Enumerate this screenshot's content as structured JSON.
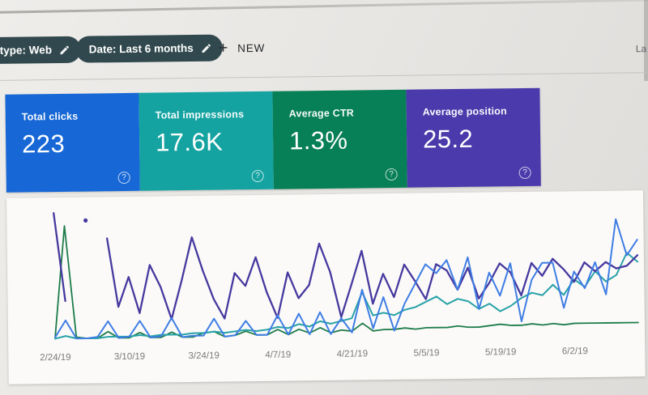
{
  "window": {
    "top_right_partial": "La"
  },
  "toolbar": {
    "chips": [
      {
        "label": "type: Web"
      },
      {
        "label": "Date: Last 6 months"
      }
    ],
    "new_button": {
      "plus": "+",
      "label": "NEW"
    }
  },
  "ui": {
    "help_glyph": "?"
  },
  "cards": [
    {
      "label": "Total clicks",
      "value": "223",
      "color": "#1768d6"
    },
    {
      "label": "Total impressions",
      "value": "17.6K",
      "color": "#14a3a1"
    },
    {
      "label": "Average CTR",
      "value": "1.3%",
      "color": "#077f57"
    },
    {
      "label": "Average position",
      "value": "25.2",
      "color": "#4b3aab"
    }
  ],
  "chart_data": {
    "type": "line",
    "title": "",
    "xlabel": "",
    "ylabel": "",
    "x_range": [
      "2/24/19",
      "6/8/19"
    ],
    "point_spacing_days": 2,
    "x_tick_labels": [
      "2/24/19",
      "3/10/19",
      "3/24/19",
      "4/7/19",
      "4/21/19",
      "5/5/19",
      "5/19/19",
      "6/2/19"
    ],
    "x_tick_indices": [
      0,
      7,
      14,
      21,
      28,
      35,
      42,
      49
    ],
    "y_axis_note": "no y-axis ticks visible; values are relative heights 0-100 of plot area; null = gap in line, single value between gaps = isolated dot",
    "grid": false,
    "legend": "none (series colors match metric cards)",
    "series": [
      {
        "name": "Clicks",
        "color": "#3e7de4",
        "stroke_width": 2,
        "values": [
          2,
          15,
          1,
          1,
          2,
          14,
          1,
          2,
          14,
          1,
          2,
          16,
          1,
          2,
          2,
          15,
          1,
          2,
          13,
          2,
          2,
          17,
          2,
          18,
          2,
          19,
          2,
          14,
          3,
          36,
          6,
          30,
          4,
          25,
          40,
          55,
          48,
          58,
          35,
          60,
          20,
          48,
          30,
          55,
          10,
          42,
          55,
          55,
          20,
          48,
          35,
          55,
          30,
          88,
          60,
          72
        ]
      },
      {
        "name": "Impressions",
        "color": "#27a2a8",
        "stroke_width": 2,
        "values": [
          1,
          3,
          1,
          1,
          1,
          2,
          2,
          2,
          3,
          2,
          3,
          3,
          3,
          4,
          4,
          5,
          4,
          5,
          6,
          5,
          6,
          8,
          7,
          10,
          8,
          12,
          10,
          12,
          14,
          34,
          16,
          18,
          16,
          20,
          22,
          26,
          30,
          24,
          28,
          26,
          20,
          24,
          18,
          22,
          28,
          32,
          30,
          38,
          30,
          42,
          36,
          48,
          40,
          45,
          62,
          55
        ]
      },
      {
        "name": "CTR",
        "color": "#1d7c4b",
        "stroke_width": 1.8,
        "values": [
          2,
          88,
          2,
          1,
          1,
          6,
          1,
          1,
          5,
          1,
          1,
          5,
          1,
          1,
          4,
          5,
          1,
          2,
          5,
          2,
          2,
          6,
          2,
          6,
          3,
          7,
          3,
          5,
          4,
          10,
          4,
          5,
          5,
          6,
          5,
          6,
          6,
          6,
          7,
          6,
          6,
          7,
          8,
          7,
          7,
          8,
          7,
          8,
          7,
          8,
          8,
          8,
          8,
          8,
          8,
          8
        ]
      },
      {
        "name": "Position",
        "color": "#46399f",
        "stroke_width": 2.3,
        "values": [
          98,
          30,
          null,
          92,
          null,
          78,
          25,
          48,
          20,
          57,
          40,
          15,
          45,
          78,
          52,
          30,
          15,
          50,
          40,
          62,
          35,
          15,
          50,
          30,
          40,
          72,
          50,
          15,
          40,
          66,
          25,
          48,
          30,
          55,
          42,
          28,
          55,
          50,
          35,
          52,
          28,
          40,
          55,
          48,
          30,
          55,
          45,
          58,
          50,
          40,
          55,
          48,
          55,
          50,
          52,
          60
        ]
      }
    ]
  }
}
